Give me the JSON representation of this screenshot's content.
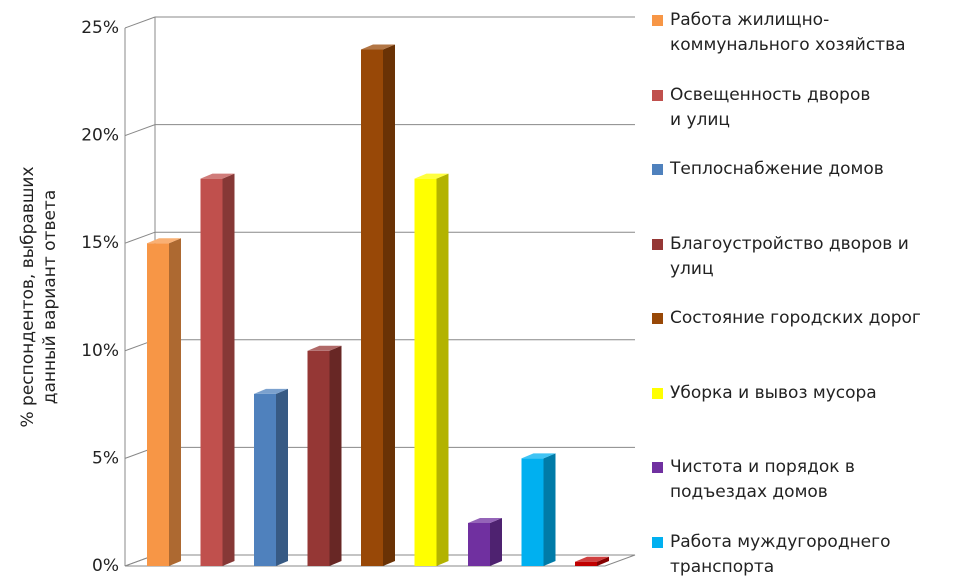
{
  "chart_data": {
    "type": "bar3d",
    "ylabel": [
      "% респондентов, выбравших",
      "данный вариант ответа"
    ],
    "ylim": [
      0,
      25
    ],
    "yticks": [
      {
        "value": 0,
        "label": "0%"
      },
      {
        "value": 5,
        "label": "5%"
      },
      {
        "value": 10,
        "label": "10%"
      },
      {
        "value": 15,
        "label": "15%"
      },
      {
        "value": 20,
        "label": "20%"
      },
      {
        "value": 25,
        "label": "25%"
      }
    ],
    "grid": true,
    "legend": "right",
    "series": [
      {
        "name": "Работа жилищно-\nкоммунального хозяйства",
        "color": "#f79646",
        "values": [
          15
        ]
      },
      {
        "name": "Освещенность дворов\n  и улиц",
        "color": "#c0504d",
        "values": [
          18
        ]
      },
      {
        "name": "Теплоснабжение домов",
        "color": "#4f81bd",
        "values": [
          8
        ]
      },
      {
        "name": "Благоустройство дворов и\nулиц",
        "color": "#953735",
        "values": [
          10
        ]
      },
      {
        "name": "Состояние городских дорог",
        "color": "#984807",
        "values": [
          24
        ]
      },
      {
        "name": "Уборка и вывоз мусора",
        "color": "#ffff00",
        "values": [
          18
        ]
      },
      {
        "name": "Чистота и порядок в\nподъездах домов",
        "color": "#7030a0",
        "values": [
          2
        ]
      },
      {
        "name": "Работа муждугороднего\nтранспорта",
        "color": "#00b0f0",
        "values": [
          5
        ]
      },
      {
        "name": null,
        "color": "#c00000",
        "values": [
          0.2
        ]
      }
    ]
  }
}
